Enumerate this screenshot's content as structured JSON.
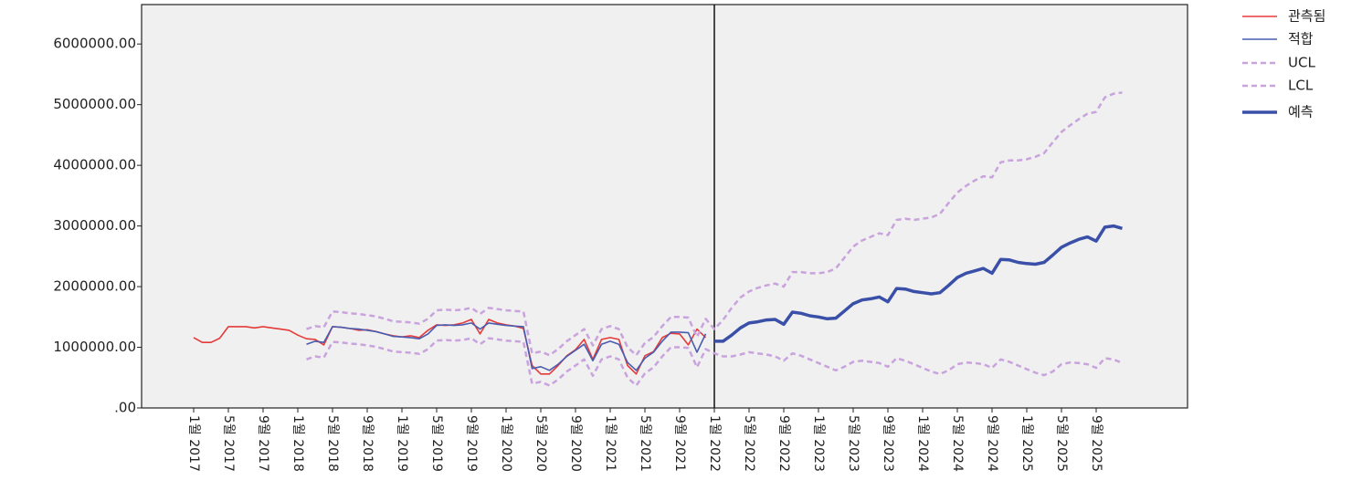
{
  "chart_data": {
    "type": "line",
    "categories": [
      "1월 2017",
      null,
      null,
      null,
      "5월 2017",
      null,
      null,
      null,
      "9월 2017",
      null,
      null,
      null,
      "1월 2018",
      null,
      null,
      null,
      "5월 2018",
      null,
      null,
      null,
      "9월 2018",
      null,
      null,
      null,
      "1월 2019",
      null,
      null,
      null,
      "5월 2019",
      null,
      null,
      null,
      "9월 2019",
      null,
      null,
      null,
      "1월 2020",
      null,
      null,
      null,
      "5월 2020",
      null,
      null,
      null,
      "9월 2020",
      null,
      null,
      null,
      "1월 2021",
      null,
      null,
      null,
      "5월 2021",
      null,
      null,
      null,
      "9월 2021",
      null,
      null,
      null,
      "1월 2022",
      null,
      null,
      null,
      "5월 2022",
      null,
      null,
      null,
      "9월 2022",
      null,
      null,
      null,
      "1월 2023",
      null,
      null,
      null,
      "5월 2023",
      null,
      null,
      null,
      "9월 2023",
      null,
      null,
      null,
      "1월 2024",
      null,
      null,
      null,
      "5월 2024",
      null,
      null,
      null,
      "9월 2024",
      null,
      null,
      null,
      "1월 2025",
      null,
      null,
      null,
      "5월 2025",
      null,
      null,
      null,
      "9월 2025",
      null,
      null,
      null
    ],
    "series": [
      {
        "name": "관측됨",
        "color": "#e53a3a",
        "line_style": "solid",
        "values": [
          1160000.0,
          1080000.0,
          1080000.0,
          1150000.0,
          1340000.0,
          1340000.0,
          1340000.0,
          1320000.0,
          1340000.0,
          1320000.0,
          1300000.0,
          1280000.0,
          1200000.0,
          1140000.0,
          1130000.0,
          1040000.0,
          1340000.0,
          1330000.0,
          1310000.0,
          1280000.0,
          1290000.0,
          1260000.0,
          1220000.0,
          1190000.0,
          1170000.0,
          1190000.0,
          1160000.0,
          1280000.0,
          1370000.0,
          1360000.0,
          1370000.0,
          1400000.0,
          1460000.0,
          1220000.0,
          1460000.0,
          1400000.0,
          1370000.0,
          1350000.0,
          1310000.0,
          700000.0,
          560000.0,
          560000.0,
          700000.0,
          860000.0,
          960000.0,
          1130000.0,
          800000.0,
          1130000.0,
          1160000.0,
          1130000.0,
          700000.0,
          560000.0,
          860000.0,
          930000.0,
          1160000.0,
          1230000.0,
          1220000.0,
          1040000.0,
          1300000.0,
          1160000.0,
          null,
          null,
          null,
          null,
          null,
          null,
          null,
          null,
          null,
          null,
          null,
          null,
          null,
          null,
          null,
          null,
          null,
          null,
          null,
          null,
          null,
          null,
          null,
          null,
          null,
          null,
          null,
          null,
          null,
          null,
          null,
          null,
          null,
          null,
          null,
          null,
          null,
          null,
          null,
          null,
          null,
          null,
          null,
          null,
          null,
          null,
          null,
          null
        ]
      },
      {
        "name": "적합",
        "color": "#4a5cb0",
        "line_style": "solid",
        "values": [
          null,
          null,
          null,
          null,
          null,
          null,
          null,
          null,
          null,
          null,
          null,
          null,
          null,
          1050000.0,
          1100000.0,
          1080000.0,
          1340000.0,
          1330000.0,
          1310000.0,
          1300000.0,
          1280000.0,
          1260000.0,
          1220000.0,
          1180000.0,
          1170000.0,
          1160000.0,
          1140000.0,
          1220000.0,
          1360000.0,
          1370000.0,
          1360000.0,
          1370000.0,
          1400000.0,
          1300000.0,
          1400000.0,
          1380000.0,
          1360000.0,
          1350000.0,
          1340000.0,
          650000.0,
          680000.0,
          620000.0,
          720000.0,
          850000.0,
          950000.0,
          1050000.0,
          780000.0,
          1050000.0,
          1100000.0,
          1050000.0,
          750000.0,
          620000.0,
          820000.0,
          920000.0,
          1100000.0,
          1250000.0,
          1250000.0,
          1240000.0,
          920000.0,
          1220000.0,
          null,
          null,
          null,
          null,
          null,
          null,
          null,
          null,
          null,
          null,
          null,
          null,
          null,
          null,
          null,
          null,
          null,
          null,
          null,
          null,
          null,
          null,
          null,
          null,
          null,
          null,
          null,
          null,
          null,
          null,
          null,
          null,
          null,
          null,
          null,
          null,
          null,
          null,
          null,
          null,
          null,
          null,
          null,
          null,
          null,
          null,
          null,
          null
        ]
      },
      {
        "name": "UCL",
        "color": "#c9a3dd",
        "line_style": "dashed",
        "values": [
          null,
          null,
          null,
          null,
          null,
          null,
          null,
          null,
          null,
          null,
          null,
          null,
          null,
          1300000.0,
          1350000.0,
          1330000.0,
          1590000.0,
          1580000.0,
          1560000.0,
          1550000.0,
          1530000.0,
          1510000.0,
          1470000.0,
          1430000.0,
          1420000.0,
          1410000.0,
          1390000.0,
          1470000.0,
          1610000.0,
          1620000.0,
          1610000.0,
          1620000.0,
          1650000.0,
          1550000.0,
          1650000.0,
          1630000.0,
          1610000.0,
          1600000.0,
          1590000.0,
          900000.0,
          930000.0,
          870000.0,
          970000.0,
          1100000.0,
          1200000.0,
          1300000.0,
          1030000.0,
          1300000.0,
          1350000.0,
          1300000.0,
          1000000.0,
          870000.0,
          1070000.0,
          1170000.0,
          1350000.0,
          1500000.0,
          1500000.0,
          1490000.0,
          1170000.0,
          1470000.0,
          1300000.0,
          1450000.0,
          1650000.0,
          1820000.0,
          1920000.0,
          1980000.0,
          2020000.0,
          2050000.0,
          2000000.0,
          2240000.0,
          2240000.0,
          2220000.0,
          2220000.0,
          2240000.0,
          2300000.0,
          2480000.0,
          2660000.0,
          2760000.0,
          2820000.0,
          2880000.0,
          2850000.0,
          3100000.0,
          3120000.0,
          3100000.0,
          3120000.0,
          3140000.0,
          3200000.0,
          3380000.0,
          3550000.0,
          3660000.0,
          3750000.0,
          3820000.0,
          3800000.0,
          4050000.0,
          4080000.0,
          4080000.0,
          4100000.0,
          4140000.0,
          4200000.0,
          4380000.0,
          4550000.0,
          4660000.0,
          4760000.0,
          4850000.0,
          4880000.0,
          5120000.0,
          5180000.0,
          5200000.0
        ]
      },
      {
        "name": "LCL",
        "color": "#c9a3dd",
        "line_style": "dashed",
        "values": [
          null,
          null,
          null,
          null,
          null,
          null,
          null,
          null,
          null,
          null,
          null,
          null,
          null,
          800000.0,
          850000.0,
          830000.0,
          1090000.0,
          1080000.0,
          1060000.0,
          1050000.0,
          1030000.0,
          1010000.0,
          970000.0,
          930000.0,
          920000.0,
          910000.0,
          890000.0,
          970000.0,
          1110000.0,
          1120000.0,
          1110000.0,
          1120000.0,
          1150000.0,
          1050000.0,
          1150000.0,
          1130000.0,
          1110000.0,
          1100000.0,
          1090000.0,
          400000.0,
          430000.0,
          370000.0,
          470000.0,
          600000.0,
          700000.0,
          800000.0,
          530000.0,
          800000.0,
          850000.0,
          800000.0,
          500000.0,
          370000.0,
          570000.0,
          670000.0,
          850000.0,
          1000000.0,
          1000000.0,
          990000.0,
          670000.0,
          970000.0,
          900000.0,
          850000.0,
          850000.0,
          880000.0,
          920000.0,
          900000.0,
          880000.0,
          850000.0,
          780000.0,
          900000.0,
          860000.0,
          800000.0,
          740000.0,
          680000.0,
          620000.0,
          680000.0,
          760000.0,
          780000.0,
          760000.0,
          740000.0,
          680000.0,
          820000.0,
          780000.0,
          720000.0,
          660000.0,
          600000.0,
          560000.0,
          620000.0,
          720000.0,
          750000.0,
          740000.0,
          720000.0,
          660000.0,
          800000.0,
          760000.0,
          700000.0,
          640000.0,
          580000.0,
          540000.0,
          600000.0,
          720000.0,
          750000.0,
          740000.0,
          720000.0,
          660000.0,
          820000.0,
          800000.0,
          740000.0
        ]
      },
      {
        "name": "예측",
        "color": "#3a50a8",
        "line_style": "solid",
        "values": [
          null,
          null,
          null,
          null,
          null,
          null,
          null,
          null,
          null,
          null,
          null,
          null,
          null,
          null,
          null,
          null,
          null,
          null,
          null,
          null,
          null,
          null,
          null,
          null,
          null,
          null,
          null,
          null,
          null,
          null,
          null,
          null,
          null,
          null,
          null,
          null,
          null,
          null,
          null,
          null,
          null,
          null,
          null,
          null,
          null,
          null,
          null,
          null,
          null,
          null,
          null,
          null,
          null,
          null,
          null,
          null,
          null,
          null,
          null,
          null,
          1100000.0,
          1100000.0,
          1200000.0,
          1320000.0,
          1400000.0,
          1420000.0,
          1450000.0,
          1460000.0,
          1380000.0,
          1580000.0,
          1560000.0,
          1520000.0,
          1500000.0,
          1470000.0,
          1480000.0,
          1600000.0,
          1720000.0,
          1780000.0,
          1800000.0,
          1830000.0,
          1750000.0,
          1970000.0,
          1960000.0,
          1920000.0,
          1900000.0,
          1880000.0,
          1900000.0,
          2020000.0,
          2150000.0,
          2220000.0,
          2260000.0,
          2300000.0,
          2220000.0,
          2450000.0,
          2440000.0,
          2400000.0,
          2380000.0,
          2370000.0,
          2400000.0,
          2520000.0,
          2650000.0,
          2720000.0,
          2780000.0,
          2820000.0,
          2750000.0,
          2980000.0,
          3000000.0,
          2960000.0
        ]
      }
    ],
    "ylim": [
      0,
      6650000
    ],
    "yticks": [
      {
        "value": 0,
        "label": ".00"
      },
      {
        "value": 1000000,
        "label": "1000000.00"
      },
      {
        "value": 2000000,
        "label": "2000000.00"
      },
      {
        "value": 3000000,
        "label": "3000000.00"
      },
      {
        "value": 4000000,
        "label": "4000000.00"
      },
      {
        "value": 5000000,
        "label": "5000000.00"
      },
      {
        "value": 6000000,
        "label": "6000000.00"
      }
    ],
    "legend": "right"
  }
}
